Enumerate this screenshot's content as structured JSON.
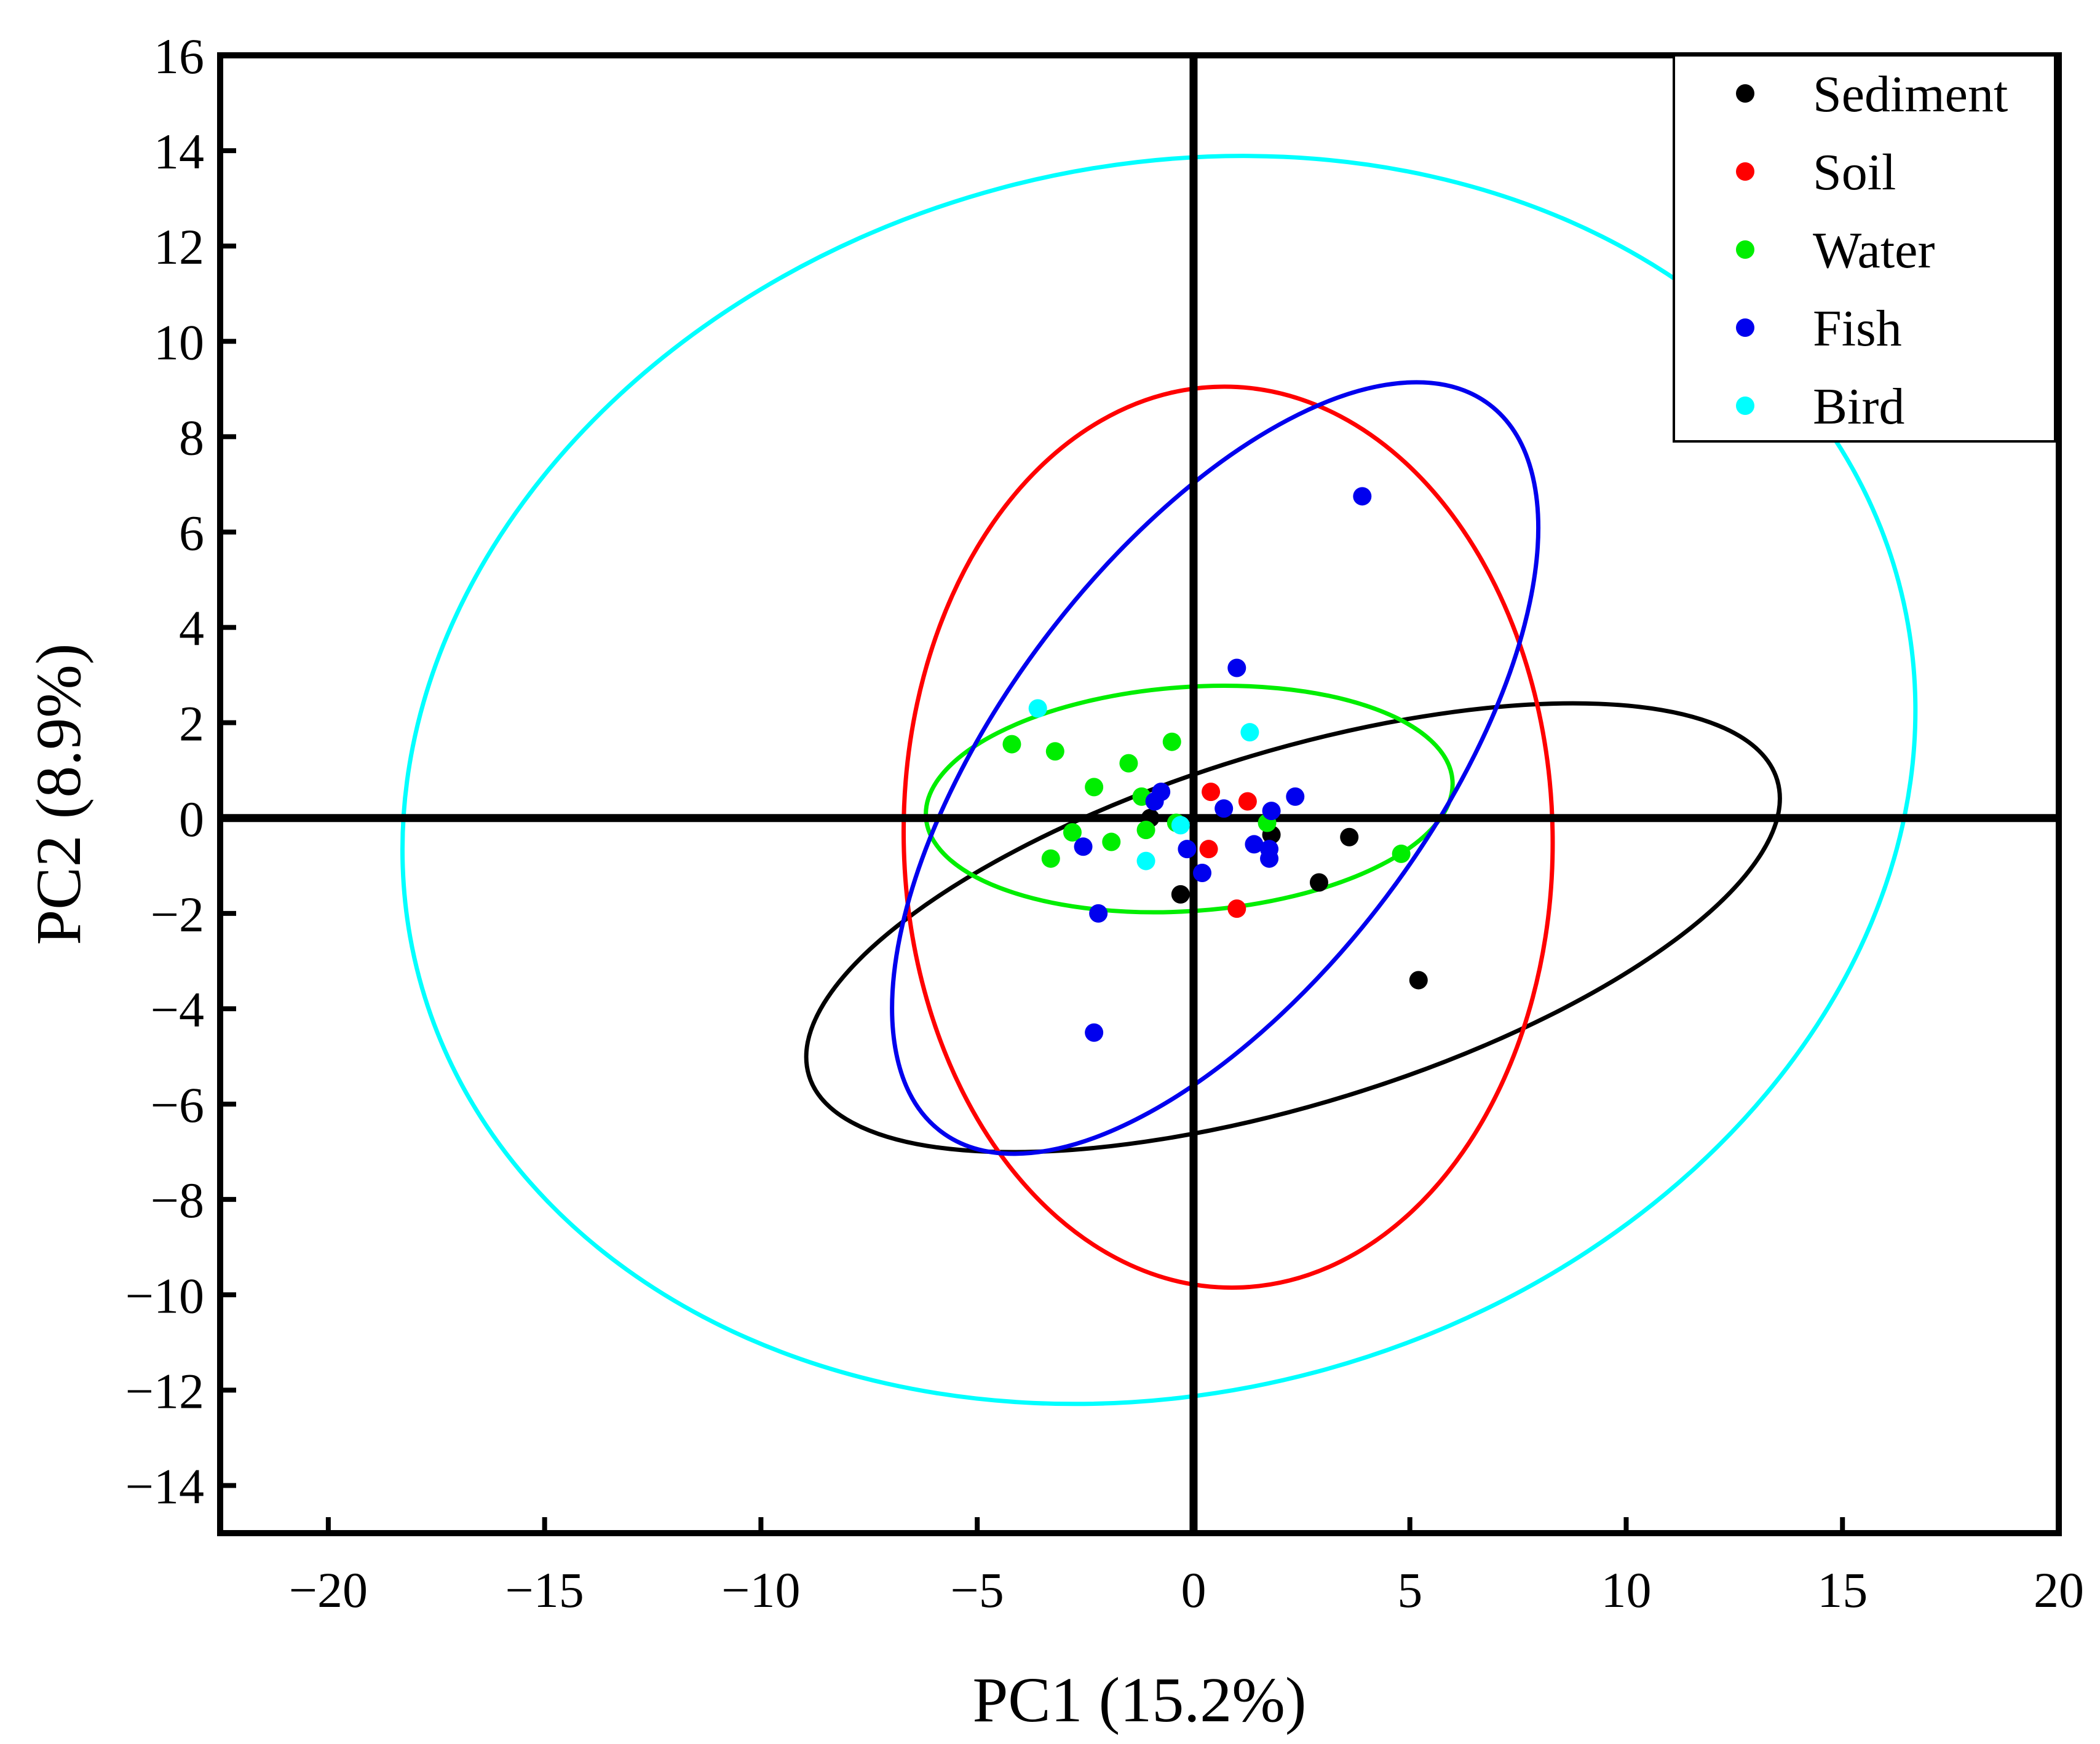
{
  "chart_data": {
    "type": "scatter",
    "title": "",
    "xlabel": "PC1 (15.2%)",
    "ylabel": "PC2 (8.9%)",
    "xlim": [
      -22.5,
      20
    ],
    "ylim": [
      -15,
      16
    ],
    "xticks": [
      -20,
      -15,
      -10,
      -5,
      0,
      5,
      10,
      15,
      20
    ],
    "yticks": [
      -14,
      -12,
      -10,
      -8,
      -6,
      -4,
      -2,
      0,
      2,
      4,
      6,
      8,
      10,
      12,
      14,
      16
    ],
    "xtick_labels": [
      "−20",
      "−15",
      "−10",
      "−5",
      "0",
      "5",
      "10",
      "15",
      "20"
    ],
    "ytick_labels": [
      "−14",
      "−12",
      "−10",
      "−8",
      "−6",
      "−4",
      "−2",
      "0",
      "2",
      "4",
      "6",
      "8",
      "10",
      "12",
      "14",
      "16"
    ],
    "grid": false,
    "legend_position": "top-right",
    "series": [
      {
        "name": "Sediment",
        "color": "#000000",
        "points": [
          [
            -1.0,
            0.0
          ],
          [
            -0.3,
            -1.6
          ],
          [
            1.8,
            -0.35
          ],
          [
            2.9,
            -1.35
          ],
          [
            3.6,
            -0.4
          ],
          [
            5.2,
            -3.4
          ]
        ],
        "ellipse": {
          "cx": 2.3,
          "cy": -2.3,
          "rx": 11.7,
          "ry": 3.7,
          "angle": -17
        }
      },
      {
        "name": "Soil",
        "color": "#ff0000",
        "points": [
          [
            0.4,
            0.55
          ],
          [
            1.25,
            0.35
          ],
          [
            0.35,
            -0.65
          ],
          [
            1.0,
            -1.9
          ]
        ],
        "ellipse": {
          "cx": 0.8,
          "cy": -0.4,
          "rx": 7.5,
          "ry": 9.45,
          "angle": -1
        }
      },
      {
        "name": "Water",
        "color": "#00ee00",
        "points": [
          [
            -4.2,
            1.55
          ],
          [
            -3.2,
            1.4
          ],
          [
            -2.3,
            0.65
          ],
          [
            -1.5,
            1.15
          ],
          [
            -0.5,
            1.6
          ],
          [
            -1.2,
            0.45
          ],
          [
            -2.8,
            -0.3
          ],
          [
            -1.9,
            -0.5
          ],
          [
            -3.3,
            -0.85
          ],
          [
            -1.1,
            -0.25
          ],
          [
            4.8,
            -0.75
          ],
          [
            1.7,
            -0.1
          ],
          [
            -0.4,
            -0.1
          ]
        ],
        "ellipse": {
          "cx": -0.1,
          "cy": 0.4,
          "rx": 6.1,
          "ry": 2.35,
          "angle": -4
        }
      },
      {
        "name": "Fish",
        "color": "#0000ee",
        "points": [
          [
            3.9,
            6.75
          ],
          [
            1.0,
            3.15
          ],
          [
            -0.75,
            0.55
          ],
          [
            -0.9,
            0.35
          ],
          [
            0.7,
            0.2
          ],
          [
            1.8,
            0.15
          ],
          [
            2.35,
            0.45
          ],
          [
            1.4,
            -0.55
          ],
          [
            1.75,
            -0.65
          ],
          [
            1.75,
            -0.85
          ],
          [
            -0.15,
            -0.65
          ],
          [
            0.2,
            -1.15
          ],
          [
            -2.55,
            -0.6
          ],
          [
            -2.2,
            -2.0
          ],
          [
            -2.3,
            -4.5
          ]
        ],
        "ellipse": {
          "cx": 0.5,
          "cy": 1.05,
          "rx": 4.95,
          "ry": 9.55,
          "angle": 37
        }
      },
      {
        "name": "Bird",
        "color": "#00ffff",
        "points": [
          [
            -3.6,
            2.3
          ],
          [
            1.3,
            1.8
          ],
          [
            -0.3,
            -0.15
          ],
          [
            -1.1,
            -0.9
          ]
        ],
        "ellipse": {
          "cx": -0.8,
          "cy": 0.8,
          "rx": 17.7,
          "ry": 12.85,
          "angle": -15
        }
      }
    ]
  }
}
